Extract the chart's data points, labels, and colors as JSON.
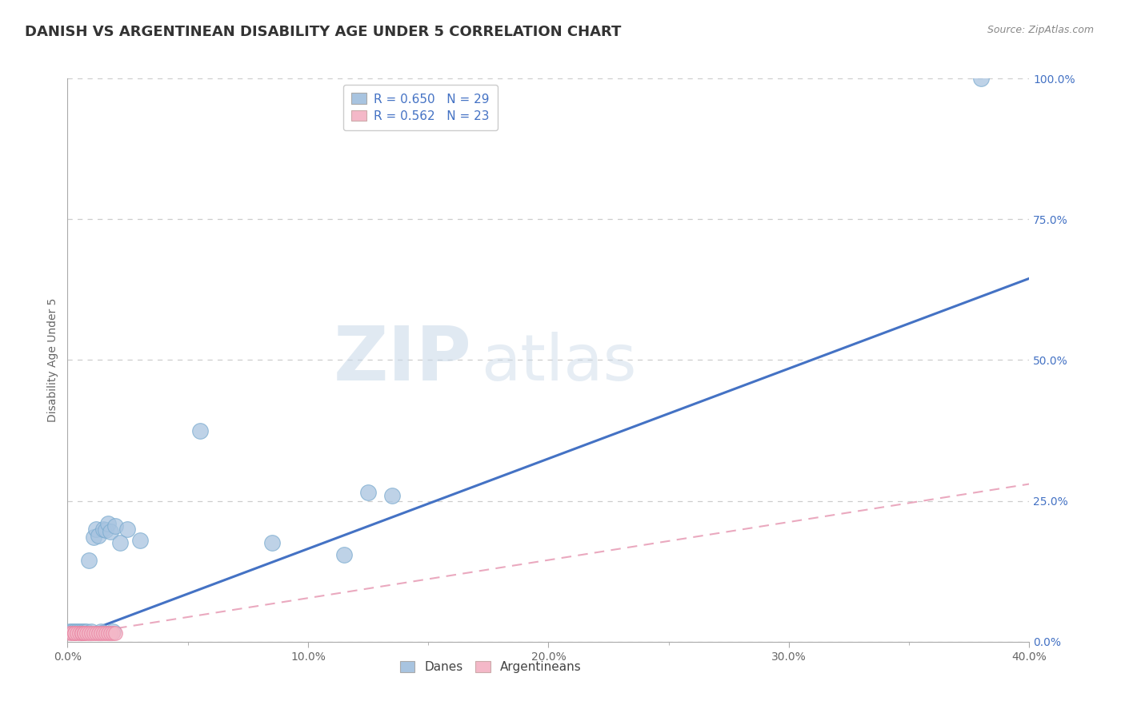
{
  "title": "DANISH VS ARGENTINEAN DISABILITY AGE UNDER 5 CORRELATION CHART",
  "source": "Source: ZipAtlas.com",
  "ylabel": "Disability Age Under 5",
  "xlim": [
    0.0,
    0.4
  ],
  "ylim": [
    0.0,
    1.0
  ],
  "xticks": [
    0.0,
    0.1,
    0.2,
    0.3,
    0.4
  ],
  "yticks": [
    0.0,
    0.25,
    0.5,
    0.75,
    1.0
  ],
  "xtick_labels": [
    "0.0%",
    "10.0%",
    "20.0%",
    "30.0%",
    "40.0%"
  ],
  "ytick_labels": [
    "0.0%",
    "25.0%",
    "50.0%",
    "75.0%",
    "100.0%"
  ],
  "danes_R": 0.65,
  "danes_N": 29,
  "argentineans_R": 0.562,
  "argentineans_N": 23,
  "danes_color": "#a8c4e0",
  "danes_edge_color": "#7aabcf",
  "argentineans_color": "#f4b8c8",
  "argentineans_edge_color": "#e882a0",
  "danes_line_color": "#4472c4",
  "argentineans_line_color": "#e8a0b8",
  "legend_label_danes": "Danes",
  "legend_label_argentineans": "Argentineans",
  "danes_line_x0": 0.0,
  "danes_line_y0": 0.005,
  "danes_line_x1": 0.4,
  "danes_line_y1": 0.645,
  "arg_line_x0": 0.0,
  "arg_line_y0": 0.01,
  "arg_line_x1": 0.4,
  "arg_line_y1": 0.28,
  "danes_x": [
    0.001,
    0.002,
    0.003,
    0.004,
    0.005,
    0.006,
    0.007,
    0.008,
    0.009,
    0.01,
    0.011,
    0.012,
    0.013,
    0.014,
    0.015,
    0.016,
    0.017,
    0.018,
    0.019,
    0.02,
    0.022,
    0.025,
    0.03,
    0.055,
    0.085,
    0.115,
    0.125,
    0.135,
    0.38
  ],
  "danes_y": [
    0.018,
    0.018,
    0.018,
    0.018,
    0.018,
    0.018,
    0.018,
    0.018,
    0.145,
    0.018,
    0.185,
    0.2,
    0.188,
    0.018,
    0.2,
    0.198,
    0.21,
    0.195,
    0.018,
    0.205,
    0.175,
    0.2,
    0.18,
    0.375,
    0.175,
    0.155,
    0.265,
    0.26,
    1.0
  ],
  "argentineans_x": [
    0.001,
    0.002,
    0.003,
    0.003,
    0.004,
    0.005,
    0.006,
    0.006,
    0.007,
    0.007,
    0.008,
    0.009,
    0.01,
    0.011,
    0.012,
    0.013,
    0.014,
    0.015,
    0.016,
    0.017,
    0.018,
    0.019,
    0.02
  ],
  "argentineans_y": [
    0.016,
    0.016,
    0.016,
    0.016,
    0.016,
    0.016,
    0.016,
    0.016,
    0.016,
    0.016,
    0.016,
    0.016,
    0.016,
    0.016,
    0.016,
    0.016,
    0.016,
    0.016,
    0.016,
    0.016,
    0.016,
    0.016,
    0.016
  ],
  "watermark_zip": "ZIP",
  "watermark_atlas": "atlas",
  "background_color": "#ffffff",
  "grid_color": "#c8c8c8",
  "title_fontsize": 13,
  "axis_label_fontsize": 10,
  "tick_fontsize": 10,
  "legend_fontsize": 11
}
